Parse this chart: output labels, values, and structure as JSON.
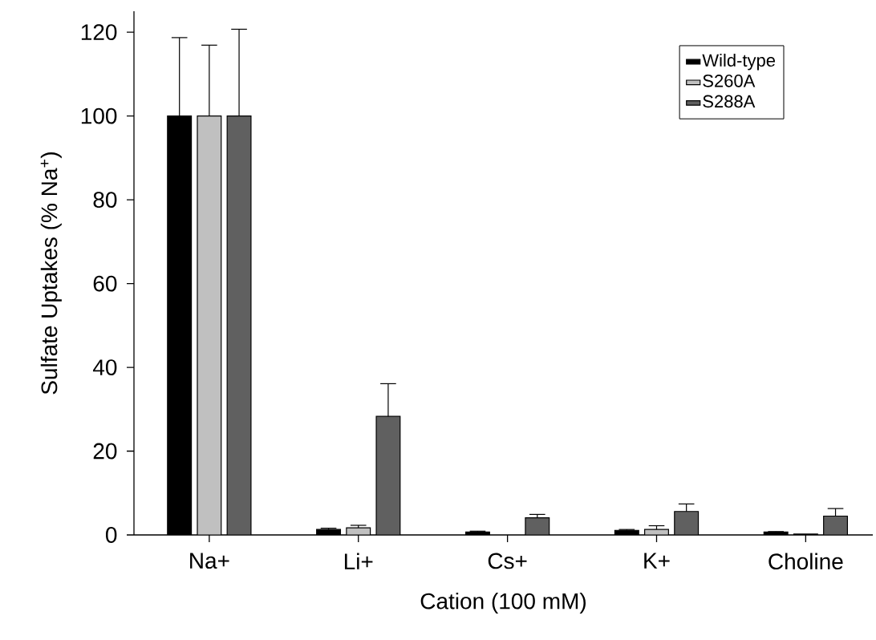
{
  "chart_data": {
    "type": "bar",
    "xlabel": "Cation (100 mM)",
    "ylabel": "Sulfate Uptakes (% Na$^{+}$)",
    "categories": [
      "Na+",
      "Li+",
      "Cs+",
      "K+",
      "Choline"
    ],
    "ylim": [
      0,
      125
    ],
    "yticks": [
      0,
      20,
      40,
      60,
      80,
      100,
      120
    ],
    "grid": false,
    "legend": "top right",
    "series": [
      {
        "name": "Wild-type",
        "color": "#000000",
        "values": [
          100,
          1.3,
          0.7,
          1.1,
          0.7
        ],
        "errors": [
          [
            100,
            118.7
          ],
          [
            1.3,
            1.6
          ],
          [
            0.7,
            0.9
          ],
          [
            1.1,
            1.3
          ],
          [
            0.7,
            0.8
          ]
        ]
      },
      {
        "name": "S260A",
        "color": "#c0c0c0",
        "values": [
          100,
          1.7,
          null,
          1.3,
          0.2
        ],
        "errors": [
          [
            100,
            116.9
          ],
          [
            1.7,
            2.3
          ],
          null,
          [
            1.3,
            2.2
          ],
          null
        ]
      },
      {
        "name": "S288A",
        "color": "#606060",
        "values": [
          100,
          28.3,
          4.1,
          5.6,
          4.5
        ],
        "errors": [
          [
            100,
            120.7
          ],
          [
            28.3,
            36.1
          ],
          [
            4.1,
            4.9
          ],
          [
            5.6,
            7.4
          ],
          [
            4.5,
            6.3
          ]
        ]
      }
    ]
  }
}
